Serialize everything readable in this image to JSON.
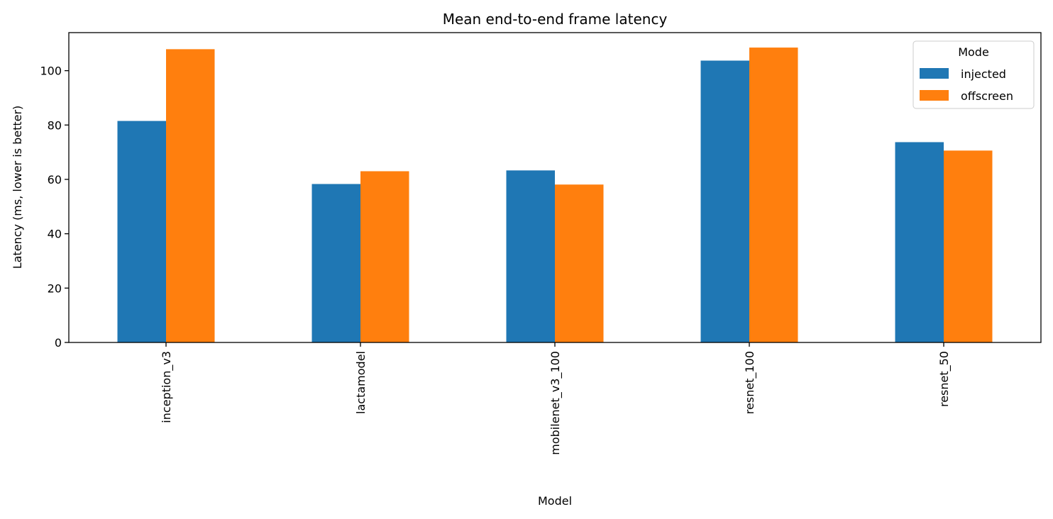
{
  "chart_data": {
    "type": "bar",
    "title": "Mean end-to-end frame latency",
    "xlabel": "Model",
    "ylabel": "Latency (ms, lower is better)",
    "categories": [
      "inception_v3",
      "lactamodel",
      "mobilenet_v3_100",
      "resnet_100",
      "resnet_50"
    ],
    "series": [
      {
        "name": "injected",
        "color": "#1f77b4",
        "values": [
          81.5,
          58.3,
          63.3,
          103.7,
          73.7
        ]
      },
      {
        "name": "offscreen",
        "color": "#ff7f0e",
        "values": [
          107.9,
          63.0,
          58.1,
          108.5,
          70.6
        ]
      }
    ],
    "ylim": [
      0,
      114
    ],
    "yticks": [
      0,
      20,
      40,
      60,
      80,
      100
    ],
    "legend": {
      "title": "Mode",
      "placement": "upper right"
    },
    "grid": false,
    "x_tick_rotation": "vertical"
  }
}
